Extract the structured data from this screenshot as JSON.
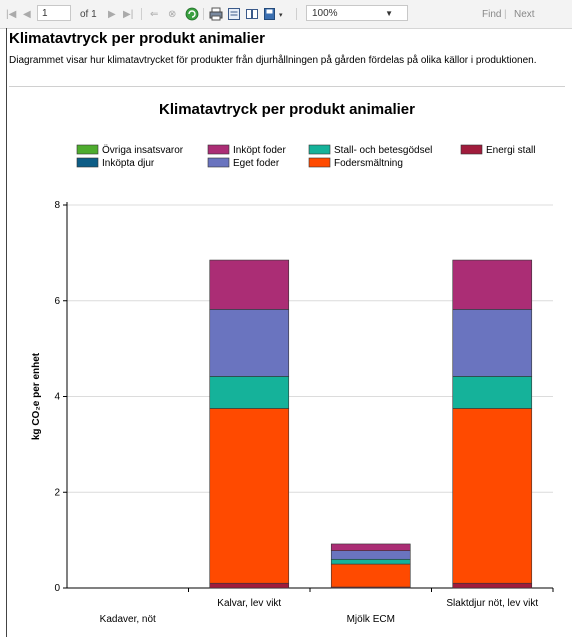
{
  "toolbar": {
    "page_value": "1",
    "of_label": "of 1",
    "zoom_value": "100%",
    "find_label": "Find",
    "next_label": "Next"
  },
  "report": {
    "title": "Klimatavtryck per produkt animalier",
    "description": "Diagrammet visar hur klimatavtrycket för produkter från djurhållningen på gården fördelas på olika källor i produktionen."
  },
  "chart_data": {
    "type": "bar",
    "stacked": true,
    "title": "Klimatavtryck per produkt animalier",
    "xlabel": "",
    "ylabel": "kg CO₂e per enhet",
    "ylim": [
      0,
      8
    ],
    "yticks": [
      "0",
      "2",
      "4",
      "6",
      "8"
    ],
    "grid": true,
    "legend_position": "top",
    "categories": [
      "Kadaver, nöt",
      "Kalvar, lev vikt",
      "Mjölk  ECM",
      "Slaktdjur nöt, lev vikt"
    ],
    "series": [
      {
        "name": "Energi stall",
        "color": "#a01c3c",
        "values": [
          0,
          0.1,
          0.02,
          0.1
        ]
      },
      {
        "name": "Fodersmältning",
        "color": "#ff4a00",
        "values": [
          0,
          3.65,
          0.48,
          3.65
        ]
      },
      {
        "name": "Stall- och betesgödsel",
        "color": "#15b29a",
        "values": [
          0,
          0.67,
          0.1,
          0.67
        ]
      },
      {
        "name": "Eget foder",
        "color": "#6a74bf",
        "values": [
          0,
          1.4,
          0.18,
          1.4
        ]
      },
      {
        "name": "Inköpta djur",
        "color": "#0d5d86",
        "values": [
          0,
          0,
          0,
          0
        ]
      },
      {
        "name": "Inköpt foder",
        "color": "#ab2d75",
        "values": [
          0,
          1.03,
          0.14,
          1.03
        ]
      },
      {
        "name": "Övriga insatsvaror",
        "color": "#4eac2e",
        "values": [
          0,
          0,
          0,
          0
        ]
      }
    ],
    "legend_order": [
      "Övriga insatsvaror",
      "Inköpt foder",
      "Stall- och betesgödsel",
      "Energi stall",
      "Inköpta djur",
      "Eget foder",
      "Fodersmältning"
    ]
  }
}
